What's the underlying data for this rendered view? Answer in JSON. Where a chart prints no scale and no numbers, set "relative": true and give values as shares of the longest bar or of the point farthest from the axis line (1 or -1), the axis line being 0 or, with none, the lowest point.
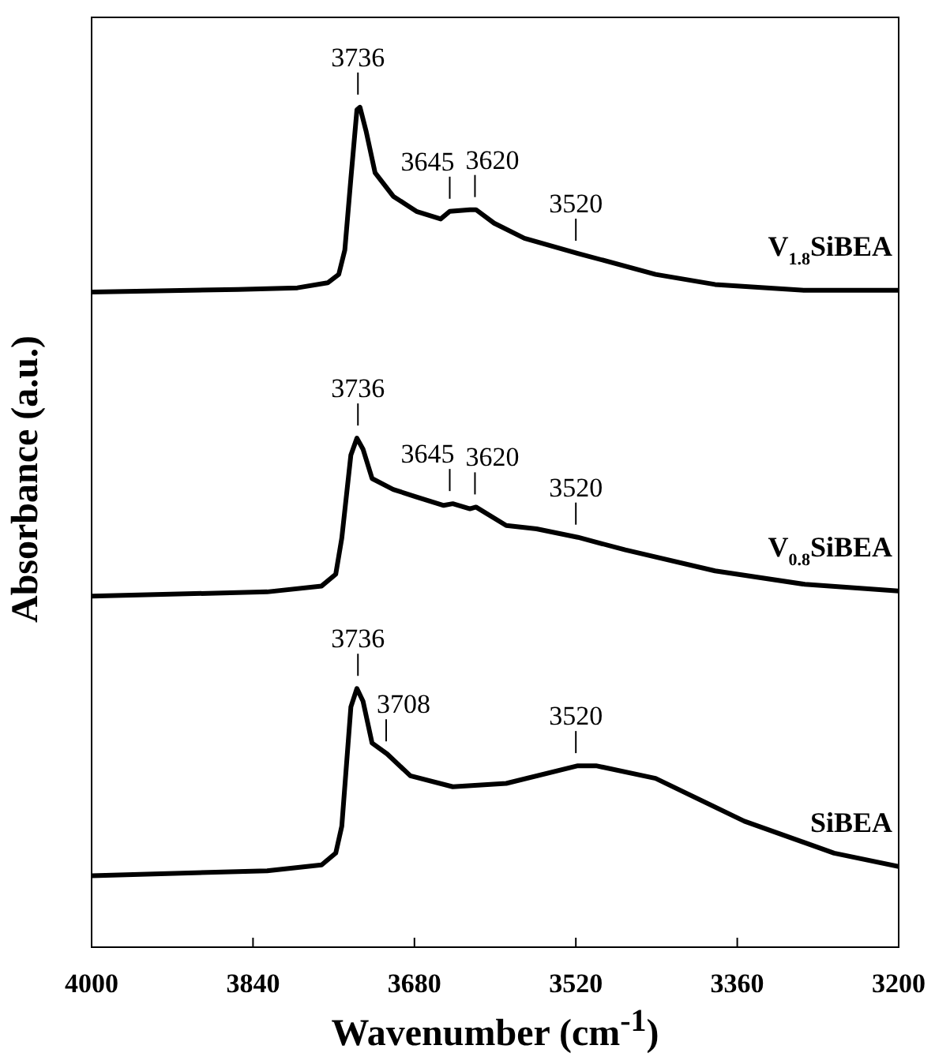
{
  "chart_data": {
    "type": "line",
    "relative": true,
    "xlabel": "Wavenumber (cm$^{-1}$)",
    "ylabel": "Absorbance (a.u.)",
    "xlim": [
      4000,
      3200
    ],
    "xticks": [
      4000,
      3840,
      3680,
      3520,
      3360,
      3200
    ],
    "legend": false,
    "series": [
      {
        "name": "V$_{1.8}$SiBEA",
        "color": "#000000",
        "x": [
          4000,
          3855,
          3796,
          3766,
          3755,
          3749,
          3743,
          3737,
          3734,
          3728,
          3719,
          3701,
          3678,
          3654,
          3645,
          3625,
          3619,
          3601,
          3571,
          3518,
          3441,
          3382,
          3293,
          3200
        ],
        "values": [
          0.78,
          0.783,
          0.785,
          0.791,
          0.801,
          0.83,
          0.915,
          0.997,
          1.0,
          0.972,
          0.922,
          0.894,
          0.876,
          0.867,
          0.876,
          0.878,
          0.878,
          0.862,
          0.844,
          0.826,
          0.801,
          0.789,
          0.782,
          0.782
        ]
      },
      {
        "name": "V$_{0.8}$SiBEA",
        "color": "#000000",
        "x": [
          4000,
          3826,
          3772,
          3758,
          3752,
          3743,
          3737,
          3731,
          3722,
          3701,
          3678,
          3651,
          3642,
          3625,
          3619,
          3589,
          3559,
          3518,
          3471,
          3382,
          3293,
          3200
        ],
        "values": [
          0.418,
          0.423,
          0.43,
          0.444,
          0.487,
          0.586,
          0.606,
          0.593,
          0.558,
          0.545,
          0.536,
          0.526,
          0.528,
          0.522,
          0.524,
          0.502,
          0.498,
          0.488,
          0.473,
          0.448,
          0.432,
          0.424
        ]
      },
      {
        "name": "SiBEA",
        "color": "#000000",
        "x": [
          4000,
          3826,
          3772,
          3758,
          3752,
          3743,
          3737,
          3731,
          3722,
          3707,
          3684,
          3642,
          3589,
          3518,
          3500,
          3441,
          3353,
          3264,
          3200
        ],
        "values": [
          0.085,
          0.091,
          0.098,
          0.112,
          0.144,
          0.286,
          0.308,
          0.293,
          0.243,
          0.23,
          0.204,
          0.191,
          0.195,
          0.216,
          0.216,
          0.201,
          0.15,
          0.112,
          0.096
        ]
      }
    ],
    "annotations": [
      {
        "text": "3736",
        "x": 3736,
        "y": 1.0
      },
      {
        "text": "3645",
        "x": 3645,
        "y": 0.876
      },
      {
        "text": "3620",
        "x": 3620,
        "y": 0.878
      },
      {
        "text": "3520",
        "x": 3520,
        "y": 0.826
      },
      {
        "text": "3736",
        "x": 3736,
        "y": 0.606
      },
      {
        "text": "3645",
        "x": 3645,
        "y": 0.528
      },
      {
        "text": "3620",
        "x": 3620,
        "y": 0.524
      },
      {
        "text": "3520",
        "x": 3520,
        "y": 0.488
      },
      {
        "text": "3736",
        "x": 3736,
        "y": 0.308
      },
      {
        "text": "3708",
        "x": 3708,
        "y": 0.23
      },
      {
        "text": "3520",
        "x": 3520,
        "y": 0.216
      }
    ]
  }
}
